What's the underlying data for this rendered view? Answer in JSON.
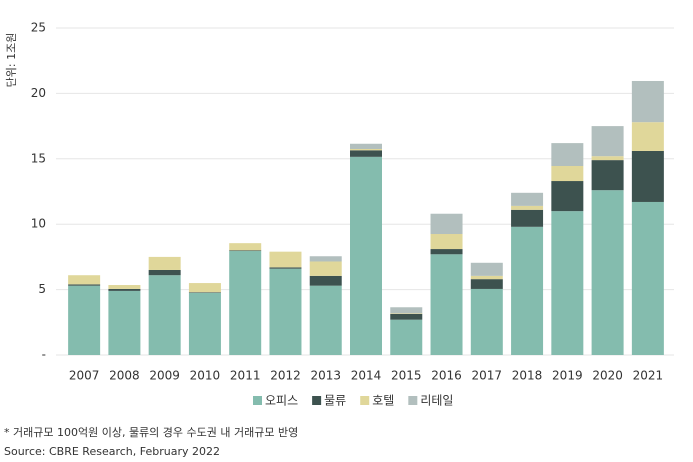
{
  "chart_data": {
    "type": "stacked_bar",
    "y_label": "단위: 1조원",
    "categories": [
      "2007",
      "2008",
      "2009",
      "2010",
      "2011",
      "2012",
      "2013",
      "2014",
      "2015",
      "2016",
      "2017",
      "2018",
      "2019",
      "2020",
      "2021"
    ],
    "series": [
      {
        "name": "오피스",
        "color": "#84bcae",
        "values": [
          5.3,
          4.9,
          6.1,
          4.75,
          7.95,
          6.6,
          5.3,
          15.15,
          2.7,
          7.7,
          5.05,
          9.8,
          11.0,
          12.6,
          11.7
        ]
      },
      {
        "name": "물류",
        "color": "#3d524f",
        "values": [
          0.1,
          0.15,
          0.4,
          0.05,
          0.05,
          0.1,
          0.75,
          0.5,
          0.45,
          0.4,
          0.75,
          1.3,
          2.3,
          2.3,
          3.9
        ]
      },
      {
        "name": "호텔",
        "color": "#e0d79a",
        "values": [
          0.7,
          0.3,
          1.0,
          0.7,
          0.55,
          1.2,
          1.1,
          0.1,
          0.05,
          1.15,
          0.25,
          0.3,
          1.15,
          0.3,
          2.2
        ]
      },
      {
        "name": "리테일",
        "color": "#b2bfbe",
        "values": [
          0,
          0,
          0,
          0,
          0,
          0,
          0.4,
          0.4,
          0.45,
          1.55,
          1.0,
          1.0,
          1.75,
          2.3,
          3.15
        ]
      }
    ],
    "ylim": [
      0,
      25
    ],
    "yticks": [
      {
        "value": 0,
        "label": "-"
      },
      5,
      10,
      15,
      20,
      25
    ],
    "grid": true,
    "legend": "bottom",
    "footnote": "* 거래규모 100억원 이상, 물류의 경우 수도권 내 거래규모 반영",
    "source": "Source: CBRE Research, February 2022"
  }
}
